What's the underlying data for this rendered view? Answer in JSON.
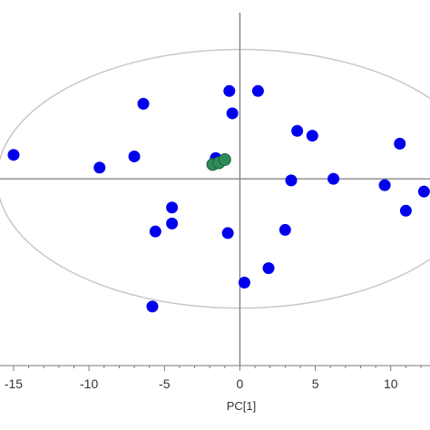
{
  "chart_data": {
    "type": "scatter",
    "title": "",
    "xlabel": "PC[1]",
    "ylabel": "",
    "xlim": [
      -15.9,
      12.6
    ],
    "ylim": [
      -11.7,
      11.2
    ],
    "x_ticks": [
      -15,
      -10,
      -5,
      0,
      5,
      10
    ],
    "x_tick_labels": [
      "-15",
      "-10",
      "-5",
      "0",
      "5",
      "10"
    ],
    "grid": false,
    "legend": "none",
    "hotelling_ellipse": {
      "center": [
        0,
        0
      ],
      "semi_axis_x": 16.1,
      "semi_axis_y": 8.1
    },
    "series": [
      {
        "color": "#0000ee",
        "points": [
          [
            -15.0,
            1.5
          ],
          [
            -9.3,
            0.7
          ],
          [
            -7.0,
            1.4
          ],
          [
            -6.4,
            4.7
          ],
          [
            -5.6,
            -3.3
          ],
          [
            -5.8,
            -8.0
          ],
          [
            -4.5,
            -1.8
          ],
          [
            -4.5,
            -2.8
          ],
          [
            -1.6,
            1.3
          ],
          [
            -0.8,
            -3.4
          ],
          [
            -0.7,
            5.5
          ],
          [
            -0.5,
            4.1
          ],
          [
            0.3,
            -6.5
          ],
          [
            1.2,
            5.5
          ],
          [
            1.9,
            -5.6
          ],
          [
            3.0,
            -3.2
          ],
          [
            3.4,
            -0.1
          ],
          [
            3.8,
            3.0
          ],
          [
            4.8,
            2.7
          ],
          [
            6.2,
            0.0
          ],
          [
            9.6,
            -0.4
          ],
          [
            10.6,
            2.2
          ],
          [
            11.0,
            -2.0
          ],
          [
            12.2,
            -0.8
          ]
        ]
      },
      {
        "color": "#2e8b57",
        "points": [
          [
            -1.8,
            0.9
          ],
          [
            -1.4,
            1.0
          ],
          [
            -1.0,
            1.2
          ]
        ]
      }
    ]
  }
}
